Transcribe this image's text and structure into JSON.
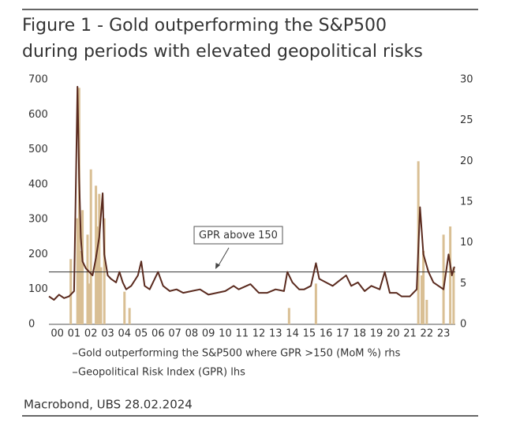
{
  "chart_data": {
    "type": "combo",
    "title_lines": [
      "Figure 1 - Gold outperforming the S&P500",
      "during periods with elevated geopolitical risks"
    ],
    "annotation": "GPR above 150",
    "reference_line": 150,
    "source": "Macrobond, UBS 28.02.2024",
    "xlim": [
      2000,
      2024.2
    ],
    "xticks": [
      {
        "value": 2000.5,
        "label": "00"
      },
      {
        "value": 2001.5,
        "label": "01"
      },
      {
        "value": 2002.5,
        "label": "02"
      },
      {
        "value": 2003.5,
        "label": "03"
      },
      {
        "value": 2004.5,
        "label": "04"
      },
      {
        "value": 2005.5,
        "label": "05"
      },
      {
        "value": 2006.5,
        "label": "06"
      },
      {
        "value": 2007.5,
        "label": "07"
      },
      {
        "value": 2008.5,
        "label": "08"
      },
      {
        "value": 2009.5,
        "label": "09"
      },
      {
        "value": 2010.5,
        "label": "10"
      },
      {
        "value": 2011.5,
        "label": "11"
      },
      {
        "value": 2012.5,
        "label": "12"
      },
      {
        "value": 2013.5,
        "label": "13"
      },
      {
        "value": 2014.5,
        "label": "14"
      },
      {
        "value": 2015.5,
        "label": "15"
      },
      {
        "value": 2016.5,
        "label": "16"
      },
      {
        "value": 2017.5,
        "label": "17"
      },
      {
        "value": 2018.5,
        "label": "18"
      },
      {
        "value": 2019.5,
        "label": "19"
      },
      {
        "value": 2020.5,
        "label": "20"
      },
      {
        "value": 2021.5,
        "label": "21"
      },
      {
        "value": 2022.5,
        "label": "22"
      },
      {
        "value": 2023.5,
        "label": "23"
      }
    ],
    "ylim": [
      0,
      700
    ],
    "yticks": [
      0,
      100,
      200,
      300,
      400,
      500,
      600,
      700
    ],
    "y2lim": [
      0,
      30
    ],
    "y2ticks": [
      0,
      5,
      10,
      15,
      20,
      25,
      30
    ],
    "series": [
      {
        "name": "Gold outperforming the S&P500 where GPR >150 (MoM %) rhs",
        "type": "bar",
        "axis": "y2",
        "color": "#d9bf94",
        "x": [
          2001.3,
          2001.7,
          2001.8,
          2001.9,
          2002.0,
          2002.3,
          2002.4,
          2002.5,
          2002.8,
          2002.9,
          2003.0,
          2003.1,
          2003.3,
          2004.5,
          2004.8,
          2014.3,
          2015.9,
          2022.0,
          2022.2,
          2022.3,
          2022.5,
          2023.5,
          2023.9,
          2024.1
        ],
        "values": [
          8,
          13,
          29,
          9,
          14,
          11,
          5,
          19,
          17,
          12,
          16,
          7,
          13,
          4,
          2,
          2,
          5,
          20,
          6,
          9,
          3,
          11,
          12,
          7
        ]
      },
      {
        "name": "Geopolitical Risk Index (GPR) lhs",
        "type": "line",
        "axis": "y",
        "color": "#5a2a1e",
        "x": [
          2000.0,
          2000.3,
          2000.6,
          2000.9,
          2001.2,
          2001.5,
          2001.7,
          2001.8,
          2001.9,
          2002.0,
          2002.2,
          2002.4,
          2002.6,
          2002.8,
          2003.0,
          2003.2,
          2003.3,
          2003.5,
          2003.7,
          2004.0,
          2004.2,
          2004.4,
          2004.6,
          2004.9,
          2005.3,
          2005.5,
          2005.7,
          2006.0,
          2006.5,
          2006.8,
          2007.2,
          2007.6,
          2008.0,
          2008.5,
          2009.0,
          2009.5,
          2010.0,
          2010.5,
          2011.0,
          2011.3,
          2012.0,
          2012.5,
          2013.0,
          2013.5,
          2014.0,
          2014.2,
          2014.5,
          2014.9,
          2015.2,
          2015.6,
          2015.9,
          2016.1,
          2016.5,
          2016.9,
          2017.3,
          2017.7,
          2018.0,
          2018.4,
          2018.8,
          2019.2,
          2019.7,
          2020.0,
          2020.3,
          2020.7,
          2021.0,
          2021.5,
          2021.9,
          2022.1,
          2022.3,
          2022.6,
          2022.9,
          2023.2,
          2023.5,
          2023.8,
          2024.0,
          2024.15
        ],
        "values": [
          80,
          70,
          85,
          75,
          80,
          95,
          680,
          420,
          250,
          180,
          160,
          150,
          140,
          190,
          250,
          375,
          200,
          140,
          130,
          120,
          150,
          120,
          100,
          110,
          140,
          180,
          110,
          100,
          150,
          110,
          95,
          100,
          90,
          95,
          100,
          85,
          90,
          95,
          110,
          100,
          115,
          90,
          90,
          100,
          95,
          150,
          120,
          100,
          100,
          110,
          175,
          130,
          120,
          110,
          125,
          140,
          110,
          120,
          95,
          110,
          100,
          150,
          90,
          90,
          80,
          80,
          100,
          335,
          200,
          150,
          120,
          110,
          100,
          200,
          140,
          165
        ]
      }
    ]
  }
}
